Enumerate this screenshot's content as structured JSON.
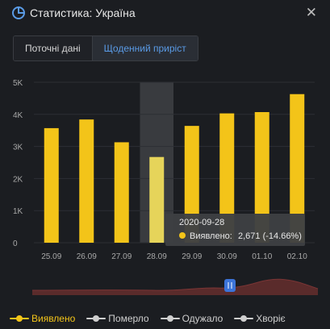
{
  "header": {
    "title": "Статистика: Україна",
    "close_glyph": "✕",
    "icon": "pie-chart-icon"
  },
  "tabs": [
    {
      "label": "Поточні дані",
      "active": false
    },
    {
      "label": "Щоденний приріст",
      "active": true
    }
  ],
  "tooltip": {
    "date": "2020-09-28",
    "series_label": "Виявлено:",
    "value_text": "2,671 (-14.66%)"
  },
  "legend": [
    {
      "label": "Виявлено",
      "color": "#f3c419",
      "active": true
    },
    {
      "label": "Померло",
      "color": "#cfcfcf",
      "active": false
    },
    {
      "label": "Одужало",
      "color": "#cfcfcf",
      "active": false
    },
    {
      "label": "Хворіє",
      "color": "#cfcfcf",
      "active": false
    }
  ],
  "colors": {
    "bar": "#f3c419",
    "bar_highlight": "#e6d45a",
    "highlight_band": "#4a4c50",
    "accent": "#5a9be6"
  },
  "chart_data": {
    "type": "bar",
    "categories": [
      "25.09",
      "26.09",
      "27.09",
      "28.09",
      "29.09",
      "30.09",
      "01.10",
      "02.10"
    ],
    "series": [
      {
        "name": "Виявлено",
        "values": [
          3570,
          3840,
          3130,
          2671,
          3640,
          4030,
          4070,
          4630
        ]
      }
    ],
    "highlight_index": 3,
    "y_ticks": [
      0,
      1000,
      2000,
      3000,
      4000,
      5000
    ],
    "y_tick_labels": [
      "0",
      "1K",
      "2K",
      "3K",
      "4K",
      "5K"
    ],
    "ylim": [
      0,
      5000
    ],
    "grid": true
  }
}
